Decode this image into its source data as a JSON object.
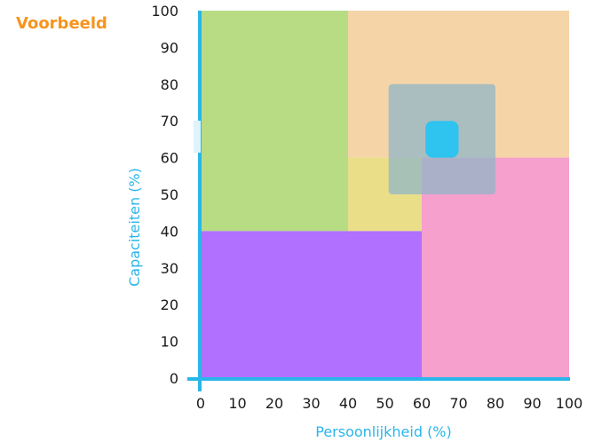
{
  "chart_data": {
    "type": "heatmap",
    "title": "Voorbeeld",
    "xlabel": "Persoonlijkheid (%)",
    "ylabel": "Capaciteiten (%)",
    "xlim": [
      0,
      100
    ],
    "ylim": [
      0,
      100
    ],
    "xticks": [
      "0",
      "10",
      "20",
      "30",
      "40",
      "50",
      "60",
      "70",
      "80",
      "90",
      "100"
    ],
    "yticks": [
      "0",
      "10",
      "20",
      "30",
      "40",
      "50",
      "60",
      "70",
      "80",
      "90",
      "100"
    ],
    "grid": false,
    "regions": [
      {
        "x": [
          0,
          40
        ],
        "y": [
          40,
          100
        ],
        "color": "#b8dc84"
      },
      {
        "x": [
          40,
          100
        ],
        "y": [
          60,
          100
        ],
        "color": "#f5d5a8"
      },
      {
        "x": [
          40,
          60
        ],
        "y": [
          40,
          60
        ],
        "color": "#eadf88"
      },
      {
        "x": [
          60,
          100
        ],
        "y": [
          0,
          60
        ],
        "color": "#f5a0cd"
      },
      {
        "x": [
          0,
          60
        ],
        "y": [
          0,
          40
        ],
        "color": "#b170ff"
      }
    ],
    "overlays": [
      {
        "x": [
          51,
          80
        ],
        "y": [
          50,
          80
        ],
        "color": "#8fb5c7",
        "opacity": 0.72
      },
      {
        "x": [
          61,
          70
        ],
        "y": [
          60,
          70
        ],
        "color": "#2ec4ef",
        "opacity": 1
      }
    ],
    "colors": {
      "axis": "#29b6ea",
      "axis_title": "#29b6ea",
      "title": "#f7941d"
    }
  }
}
